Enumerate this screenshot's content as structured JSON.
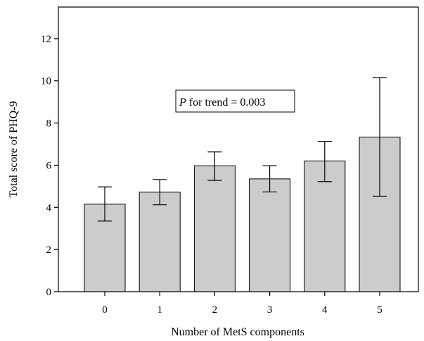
{
  "chart_data": {
    "type": "bar",
    "categories": [
      "0",
      "1",
      "2",
      "3",
      "4",
      "5"
    ],
    "values": [
      4.15,
      4.72,
      5.97,
      5.35,
      6.2,
      7.33
    ],
    "error_low": [
      3.35,
      4.12,
      5.28,
      4.73,
      5.22,
      4.53
    ],
    "error_high": [
      4.97,
      5.32,
      6.63,
      5.97,
      7.13,
      10.15
    ],
    "xlabel": "Number of MetS components",
    "ylabel": "Total score of PHQ-9",
    "ylim": [
      0,
      13.5
    ],
    "yticks": [
      0,
      2,
      4,
      6,
      8,
      10,
      12
    ],
    "grid": false,
    "bar_color": "#cccccc",
    "annotation": {
      "italic": "P",
      "text": " for trend = 0.003"
    }
  }
}
